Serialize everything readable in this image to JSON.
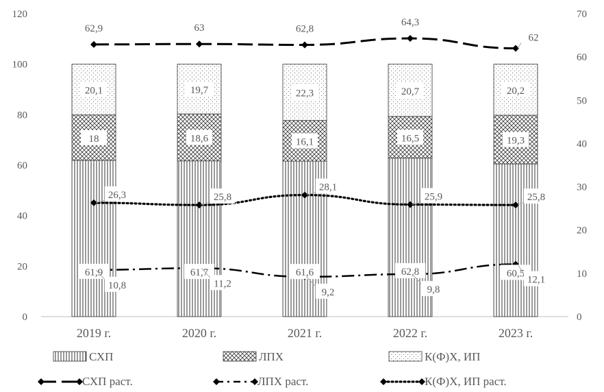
{
  "chart_data": {
    "type": "bar",
    "stacked": true,
    "categories": [
      "2019 г.",
      "2020 г.",
      "2021 г.",
      "2022 г.",
      "2023 г."
    ],
    "y_left": {
      "min": 0,
      "max": 120,
      "ticks": [
        "0",
        "20",
        "40",
        "60",
        "80",
        "100",
        "120"
      ]
    },
    "y_right": {
      "min": 0,
      "max": 70,
      "ticks": [
        "0",
        "10",
        "20",
        "30",
        "40",
        "50",
        "60",
        "70"
      ]
    },
    "series": [
      {
        "name": "СХП",
        "axis": "left",
        "pattern": "vertical-lines",
        "values": [
          61.9,
          61.7,
          61.6,
          62.8,
          60.5
        ],
        "labels": [
          "61,9",
          "61,7",
          "61,6",
          "62,8",
          "60,5"
        ]
      },
      {
        "name": "ЛПХ",
        "axis": "left",
        "pattern": "crosshatch",
        "values": [
          18,
          18.6,
          16.1,
          16.5,
          19.3
        ],
        "labels": [
          "18",
          "18,6",
          "16,1",
          "16,5",
          "19,3"
        ]
      },
      {
        "name": "К(Ф)Х, ИП",
        "axis": "left",
        "pattern": "dots",
        "values": [
          20.1,
          19.7,
          22.3,
          20.7,
          20.2
        ],
        "labels": [
          "20,1",
          "19,7",
          "22,3",
          "20,7",
          "20,2"
        ]
      }
    ],
    "line_series": [
      {
        "name": "СХП раст.",
        "axis": "right",
        "style": "long-dash",
        "values": [
          62.9,
          63,
          62.8,
          64.3,
          62
        ],
        "labels": [
          "62,9",
          "63",
          "62,8",
          "64,3",
          "62"
        ]
      },
      {
        "name": "ЛПХ раст.",
        "axis": "right",
        "style": "dash-dot",
        "values": [
          10.8,
          11.2,
          9.2,
          9.8,
          12.1
        ],
        "labels": [
          "10,8",
          "11,2",
          "9,2",
          "9,8",
          "12,1"
        ]
      },
      {
        "name": "К(Ф)Х, ИП раст.",
        "axis": "right",
        "style": "dotted",
        "values": [
          26.3,
          25.8,
          28.1,
          25.9,
          25.8
        ],
        "labels": [
          "26,3",
          "25,8",
          "28,1",
          "25,9",
          "25,8"
        ]
      }
    ],
    "legend_position": "bottom",
    "grid": false
  }
}
